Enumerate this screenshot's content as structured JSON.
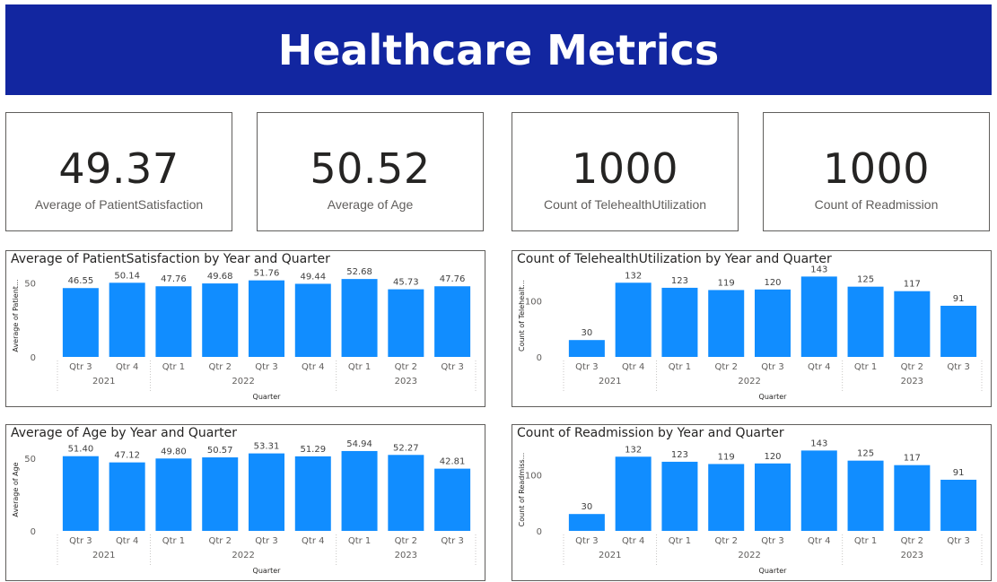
{
  "header": {
    "title": "Healthcare Metrics"
  },
  "cards": [
    {
      "value": "49.37",
      "label": "Average of PatientSatisfaction"
    },
    {
      "value": "50.52",
      "label": "Average of Age"
    },
    {
      "value": "1000",
      "label": "Count of TelehealthUtilization"
    },
    {
      "value": "1000",
      "label": "Count of Readmission"
    }
  ],
  "colors": {
    "banner": "#1226a0",
    "bar": "#118dff"
  },
  "chart_data": [
    {
      "type": "bar",
      "title": "Average of PatientSatisfaction by Year and Quarter",
      "ylabel": "Average of Patient...",
      "xlabel": "Quarter",
      "categories": [
        "Qtr 3",
        "Qtr 4",
        "Qtr 1",
        "Qtr 2",
        "Qtr 3",
        "Qtr 4",
        "Qtr 1",
        "Qtr 2",
        "Qtr 3"
      ],
      "groups": [
        {
          "label": "2021",
          "span": 2
        },
        {
          "label": "2022",
          "span": 4
        },
        {
          "label": "2023",
          "span": 3
        }
      ],
      "values": [
        46.55,
        50.14,
        47.76,
        49.68,
        51.76,
        49.44,
        52.68,
        45.73,
        47.76
      ],
      "data_labels": [
        "46.55",
        "50.14",
        "47.76",
        "49.68",
        "51.76",
        "49.44",
        "52.68",
        "45.73",
        "47.76"
      ],
      "yticks": [
        0,
        50
      ],
      "ylim": [
        0,
        57
      ]
    },
    {
      "type": "bar",
      "title": "Count of TelehealthUtilization by Year and Quarter",
      "ylabel": "Count of Telehealt...",
      "xlabel": "Quarter",
      "categories": [
        "Qtr 3",
        "Qtr 4",
        "Qtr 1",
        "Qtr 2",
        "Qtr 3",
        "Qtr 4",
        "Qtr 1",
        "Qtr 2",
        "Qtr 3"
      ],
      "groups": [
        {
          "label": "2021",
          "span": 2
        },
        {
          "label": "2022",
          "span": 4
        },
        {
          "label": "2023",
          "span": 3
        }
      ],
      "values": [
        30,
        132,
        123,
        119,
        120,
        143,
        125,
        117,
        91
      ],
      "data_labels": [
        "30",
        "132",
        "123",
        "119",
        "120",
        "143",
        "125",
        "117",
        "91"
      ],
      "yticks": [
        0,
        100
      ],
      "ylim": [
        0,
        150
      ]
    },
    {
      "type": "bar",
      "title": "Average of Age by Year and Quarter",
      "ylabel": "Average of Age",
      "xlabel": "Quarter",
      "categories": [
        "Qtr 3",
        "Qtr 4",
        "Qtr 1",
        "Qtr 2",
        "Qtr 3",
        "Qtr 4",
        "Qtr 1",
        "Qtr 2",
        "Qtr 3"
      ],
      "groups": [
        {
          "label": "2021",
          "span": 2
        },
        {
          "label": "2022",
          "span": 4
        },
        {
          "label": "2023",
          "span": 3
        }
      ],
      "values": [
        51.4,
        47.12,
        49.8,
        50.57,
        53.31,
        51.29,
        54.94,
        52.27,
        42.81
      ],
      "data_labels": [
        "51.40",
        "47.12",
        "49.80",
        "50.57",
        "53.31",
        "51.29",
        "54.94",
        "52.27",
        "42.81"
      ],
      "yticks": [
        0,
        50
      ],
      "ylim": [
        0,
        58
      ]
    },
    {
      "type": "bar",
      "title": "Count of Readmission by Year and Quarter",
      "ylabel": "Count of Readmiss...",
      "xlabel": "Quarter",
      "categories": [
        "Qtr 3",
        "Qtr 4",
        "Qtr 1",
        "Qtr 2",
        "Qtr 3",
        "Qtr 4",
        "Qtr 1",
        "Qtr 2",
        "Qtr 3"
      ],
      "groups": [
        {
          "label": "2021",
          "span": 2
        },
        {
          "label": "2022",
          "span": 4
        },
        {
          "label": "2023",
          "span": 3
        }
      ],
      "values": [
        30,
        132,
        123,
        119,
        120,
        143,
        125,
        117,
        91
      ],
      "data_labels": [
        "30",
        "132",
        "123",
        "119",
        "120",
        "143",
        "125",
        "117",
        "91"
      ],
      "yticks": [
        0,
        100
      ],
      "ylim": [
        0,
        150
      ]
    }
  ]
}
